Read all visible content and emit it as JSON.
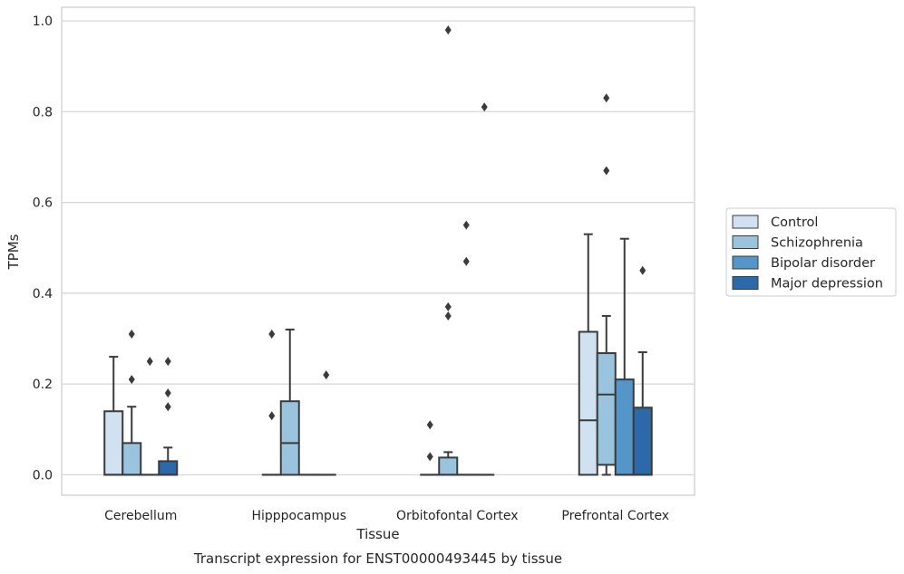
{
  "chart_data": {
    "type": "box",
    "title": "Transcript expression for ENST00000493445 by tissue",
    "xlabel": "Tissue",
    "ylabel": "TPMs",
    "ylim": [
      -0.045,
      1.03
    ],
    "yticks": [
      "0.0",
      "0.2",
      "0.4",
      "0.6",
      "0.8",
      "1.0"
    ],
    "grid": true,
    "legend_position": "right",
    "categories": [
      "Cerebellum",
      "Hipppocampus",
      "Orbitofontal Cortex",
      "Prefrontal Cortex"
    ],
    "series": [
      {
        "name": "Control",
        "color": "#d0e1f1",
        "boxes": [
          {
            "q1": 0.0,
            "median": 0.0,
            "q3": 0.14,
            "whisker_low": 0.0,
            "whisker_high": 0.26,
            "outliers": []
          },
          {
            "q1": 0.0,
            "median": 0.0,
            "q3": 0.0,
            "whisker_low": 0.0,
            "whisker_high": 0.0,
            "outliers": [
              0.13,
              0.31
            ]
          },
          {
            "q1": 0.0,
            "median": 0.0,
            "q3": 0.0,
            "whisker_low": 0.0,
            "whisker_high": 0.0,
            "outliers": [
              0.04,
              0.11
            ]
          },
          {
            "q1": 0.0,
            "median": 0.12,
            "q3": 0.315,
            "whisker_low": 0.0,
            "whisker_high": 0.53,
            "outliers": []
          }
        ]
      },
      {
        "name": "Schizophrenia",
        "color": "#9ac4de",
        "boxes": [
          {
            "q1": 0.0,
            "median": 0.0,
            "q3": 0.07,
            "whisker_low": 0.0,
            "whisker_high": 0.15,
            "outliers": [
              0.21,
              0.31
            ]
          },
          {
            "q1": 0.0,
            "median": 0.07,
            "q3": 0.162,
            "whisker_low": 0.0,
            "whisker_high": 0.32,
            "outliers": []
          },
          {
            "q1": 0.0,
            "median": 0.0,
            "q3": 0.038,
            "whisker_low": 0.0,
            "whisker_high": 0.05,
            "outliers": [
              0.35,
              0.37,
              0.98
            ]
          },
          {
            "q1": 0.022,
            "median": 0.177,
            "q3": 0.268,
            "whisker_low": 0.0,
            "whisker_high": 0.35,
            "outliers": [
              0.67,
              0.83
            ]
          }
        ]
      },
      {
        "name": "Bipolar disorder",
        "color": "#5496c7",
        "boxes": [
          {
            "q1": 0.0,
            "median": 0.0,
            "q3": 0.0,
            "whisker_low": 0.0,
            "whisker_high": 0.0,
            "outliers": [
              0.25
            ]
          },
          {
            "q1": 0.0,
            "median": 0.0,
            "q3": 0.0,
            "whisker_low": 0.0,
            "whisker_high": 0.0,
            "outliers": []
          },
          {
            "q1": 0.0,
            "median": 0.0,
            "q3": 0.0,
            "whisker_low": 0.0,
            "whisker_high": 0.0,
            "outliers": [
              0.47,
              0.55
            ]
          },
          {
            "q1": 0.0,
            "median": 0.0,
            "q3": 0.21,
            "whisker_low": 0.0,
            "whisker_high": 0.52,
            "outliers": []
          }
        ]
      },
      {
        "name": "Major depression",
        "color": "#2c69a8",
        "boxes": [
          {
            "q1": 0.0,
            "median": 0.0,
            "q3": 0.03,
            "whisker_low": 0.0,
            "whisker_high": 0.06,
            "outliers": [
              0.15,
              0.18,
              0.25
            ]
          },
          {
            "q1": 0.0,
            "median": 0.0,
            "q3": 0.0,
            "whisker_low": 0.0,
            "whisker_high": 0.0,
            "outliers": [
              0.22
            ]
          },
          {
            "q1": 0.0,
            "median": 0.0,
            "q3": 0.0,
            "whisker_low": 0.0,
            "whisker_high": 0.0,
            "outliers": [
              0.81
            ]
          },
          {
            "q1": 0.0,
            "median": 0.0,
            "q3": 0.148,
            "whisker_low": 0.0,
            "whisker_high": 0.27,
            "outliers": [
              0.45
            ]
          }
        ]
      }
    ]
  }
}
